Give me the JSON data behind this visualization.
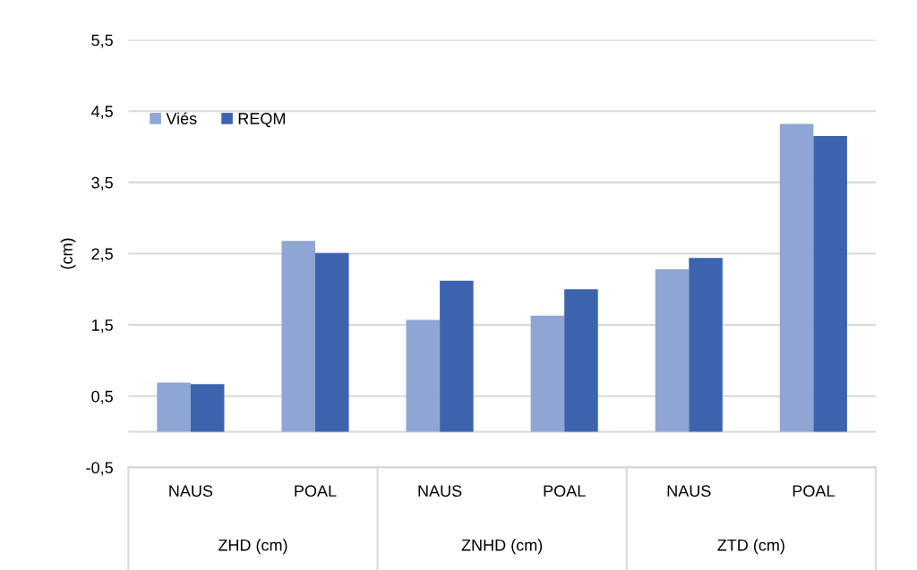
{
  "chart_data": {
    "type": "bar",
    "ylabel": "(cm)",
    "categories": [
      "NAUS",
      "POAL",
      "NAUS",
      "POAL",
      "NAUS",
      "POAL"
    ],
    "series": [
      {
        "name": "Viés",
        "color": "#8fa5d4",
        "values": [
          0.69,
          2.68,
          1.57,
          1.63,
          2.28,
          4.32
        ]
      },
      {
        "name": "REQM",
        "color": "#3c64ae",
        "values": [
          0.67,
          2.51,
          2.12,
          2.0,
          2.44,
          4.15
        ]
      }
    ],
    "annotations": [
      "ZHD (cm)",
      "ZNHD (cm)",
      "ZTD (cm)"
    ],
    "ylim": [
      -0.5,
      5.5
    ],
    "yticks": [
      {
        "value": -0.5,
        "label": "-0,5"
      },
      {
        "value": 0.5,
        "label": "0,5"
      },
      {
        "value": 1.5,
        "label": "1,5"
      },
      {
        "value": 2.5,
        "label": "2,5"
      },
      {
        "value": 3.5,
        "label": "3,5"
      },
      {
        "value": 4.5,
        "label": "4,5"
      },
      {
        "value": 5.5,
        "label": "5,5"
      }
    ],
    "grid": "y",
    "legend": "top left"
  }
}
